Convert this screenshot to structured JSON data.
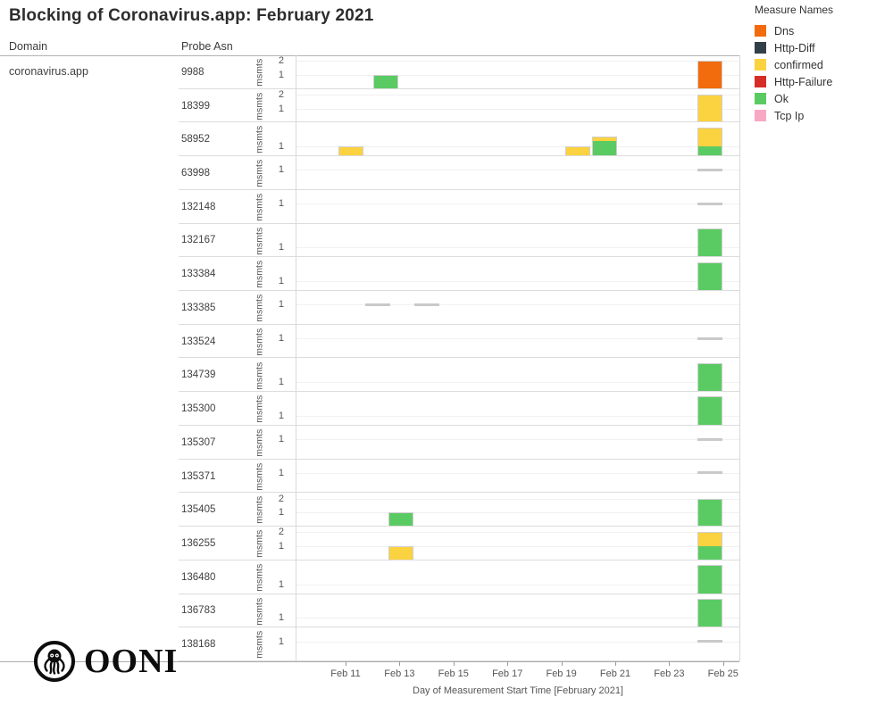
{
  "page": {
    "title": "Blocking of Coronavirus.app: February 2021"
  },
  "columns": {
    "domain_header": "Domain",
    "asn_header": "Probe Asn"
  },
  "domain": "coronavirus.app",
  "legend": {
    "title": "Measure Names"
  },
  "logo": {
    "text": "OONI"
  },
  "chart_data": {
    "type": "bar",
    "title": "Blocking of Coronavirus.app: February 2021",
    "subtitle": "",
    "y_axis_unit": "msmts",
    "xlabel": "Day of Measurement Start Time [February 2021]",
    "x_ticks": [
      "Feb 11",
      "Feb 13",
      "Feb 15",
      "Feb 17",
      "Feb 19",
      "Feb 21",
      "Feb 23",
      "Feb 25"
    ],
    "x_tick_days": [
      11,
      13,
      15,
      17,
      19,
      21,
      23,
      25
    ],
    "x_range_days": [
      9.15,
      25.6
    ],
    "grid": "faint horizontal gridlines at integer msmts",
    "legend_position": "top-right",
    "measures": [
      {
        "name": "Dns",
        "color": "#F26B0D"
      },
      {
        "name": "Http-Diff",
        "color": "#333F48"
      },
      {
        "name": "confirmed",
        "color": "#FBD23F"
      },
      {
        "name": "Http-Failure",
        "color": "#D62E27"
      },
      {
        "name": "Ok",
        "color": "#5ACB63"
      },
      {
        "name": "Tcp Ip",
        "color": "#F8A8C3"
      }
    ],
    "rows": [
      {
        "asn": "9988",
        "y_ticks": [
          1,
          2
        ],
        "y_max": 2.2,
        "bars": [
          {
            "day": 12.5,
            "day_label": "Feb 12",
            "segments": [
              {
                "measure": "Ok",
                "value": 1
              }
            ]
          },
          {
            "day": 24.5,
            "day_label": "Feb 24",
            "segments": [
              {
                "measure": "Dns",
                "value": 2
              }
            ]
          }
        ],
        "line_marks": []
      },
      {
        "asn": "18399",
        "y_ticks": [
          1,
          2
        ],
        "y_max": 2.2,
        "bars": [
          {
            "day": 24.5,
            "day_label": "Feb 24",
            "segments": [
              {
                "measure": "confirmed",
                "value": 2
              }
            ]
          }
        ],
        "line_marks": []
      },
      {
        "asn": "58952",
        "y_ticks": [
          1
        ],
        "y_max": 3.2,
        "bars": [
          {
            "day": 11.2,
            "day_label": "Feb 11",
            "segments": [
              {
                "measure": "confirmed",
                "value": 1
              }
            ]
          },
          {
            "day": 19.6,
            "day_label": "Feb 19",
            "segments": [
              {
                "measure": "confirmed",
                "value": 1
              }
            ]
          },
          {
            "day": 20.6,
            "day_label": "Feb 20",
            "segments": [
              {
                "measure": "Ok",
                "value": 1.6
              },
              {
                "measure": "confirmed",
                "value": 0.45
              }
            ]
          },
          {
            "day": 24.5,
            "day_label": "Feb 24",
            "segments": [
              {
                "measure": "Ok",
                "value": 1
              },
              {
                "measure": "confirmed",
                "value": 2
              }
            ]
          }
        ],
        "line_marks": []
      },
      {
        "asn": "63998",
        "y_ticks": [
          1
        ],
        "y_max": 1.55,
        "bars": [],
        "line_marks": [
          {
            "day": 24.5,
            "day_label": "Feb 24",
            "value": 1
          }
        ]
      },
      {
        "asn": "132148",
        "y_ticks": [
          1
        ],
        "y_max": 1.55,
        "bars": [],
        "line_marks": [
          {
            "day": 24.5,
            "day_label": "Feb 24",
            "value": 1
          }
        ]
      },
      {
        "asn": "132167",
        "y_ticks": [
          1
        ],
        "y_max": 3.2,
        "bars": [
          {
            "day": 24.5,
            "day_label": "Feb 24",
            "segments": [
              {
                "measure": "Ok",
                "value": 3
              }
            ]
          }
        ],
        "line_marks": []
      },
      {
        "asn": "133384",
        "y_ticks": [
          1
        ],
        "y_max": 3.2,
        "bars": [
          {
            "day": 24.5,
            "day_label": "Feb 24",
            "segments": [
              {
                "measure": "Ok",
                "value": 3
              }
            ]
          }
        ],
        "line_marks": []
      },
      {
        "asn": "133385",
        "y_ticks": [
          1
        ],
        "y_max": 1.55,
        "bars": [],
        "line_marks": [
          {
            "day": 12.2,
            "day_label": "Feb 12",
            "value": 1
          },
          {
            "day": 14.0,
            "day_label": "Feb 14",
            "value": 1
          }
        ]
      },
      {
        "asn": "133524",
        "y_ticks": [
          1
        ],
        "y_max": 1.55,
        "bars": [],
        "line_marks": [
          {
            "day": 24.5,
            "day_label": "Feb 24",
            "value": 1
          }
        ]
      },
      {
        "asn": "134739",
        "y_ticks": [
          1
        ],
        "y_max": 3.2,
        "bars": [
          {
            "day": 24.5,
            "day_label": "Feb 24",
            "segments": [
              {
                "measure": "Ok",
                "value": 3
              }
            ]
          }
        ],
        "line_marks": []
      },
      {
        "asn": "135300",
        "y_ticks": [
          1
        ],
        "y_max": 3.2,
        "bars": [
          {
            "day": 24.5,
            "day_label": "Feb 24",
            "segments": [
              {
                "measure": "Ok",
                "value": 3
              }
            ]
          }
        ],
        "line_marks": []
      },
      {
        "asn": "135307",
        "y_ticks": [
          1
        ],
        "y_max": 1.55,
        "bars": [],
        "line_marks": [
          {
            "day": 24.5,
            "day_label": "Feb 24",
            "value": 1
          }
        ]
      },
      {
        "asn": "135371",
        "y_ticks": [
          1
        ],
        "y_max": 1.55,
        "bars": [],
        "line_marks": [
          {
            "day": 24.5,
            "day_label": "Feb 24",
            "value": 1
          }
        ]
      },
      {
        "asn": "135405",
        "y_ticks": [
          1,
          2
        ],
        "y_max": 2.2,
        "bars": [
          {
            "day": 13.05,
            "day_label": "Feb 13",
            "segments": [
              {
                "measure": "Ok",
                "value": 1
              }
            ]
          },
          {
            "day": 24.5,
            "day_label": "Feb 24",
            "segments": [
              {
                "measure": "Ok",
                "value": 2
              }
            ]
          }
        ],
        "line_marks": []
      },
      {
        "asn": "136255",
        "y_ticks": [
          1,
          2
        ],
        "y_max": 2.2,
        "bars": [
          {
            "day": 13.05,
            "day_label": "Feb 13",
            "segments": [
              {
                "measure": "confirmed",
                "value": 1
              }
            ]
          },
          {
            "day": 24.5,
            "day_label": "Feb 24",
            "segments": [
              {
                "measure": "Ok",
                "value": 1
              },
              {
                "measure": "confirmed",
                "value": 1
              }
            ]
          }
        ],
        "line_marks": []
      },
      {
        "asn": "136480",
        "y_ticks": [
          1
        ],
        "y_max": 3.2,
        "bars": [
          {
            "day": 24.5,
            "day_label": "Feb 24",
            "segments": [
              {
                "measure": "Ok",
                "value": 3
              }
            ]
          }
        ],
        "line_marks": []
      },
      {
        "asn": "136783",
        "y_ticks": [
          1
        ],
        "y_max": 3.2,
        "bars": [
          {
            "day": 24.5,
            "day_label": "Feb 24",
            "segments": [
              {
                "measure": "Ok",
                "value": 3
              }
            ]
          }
        ],
        "line_marks": []
      },
      {
        "asn": "138168",
        "y_ticks": [
          1
        ],
        "y_max": 1.55,
        "bars": [],
        "line_marks": [
          {
            "day": 24.5,
            "day_label": "Feb 24",
            "value": 1
          }
        ]
      }
    ]
  }
}
